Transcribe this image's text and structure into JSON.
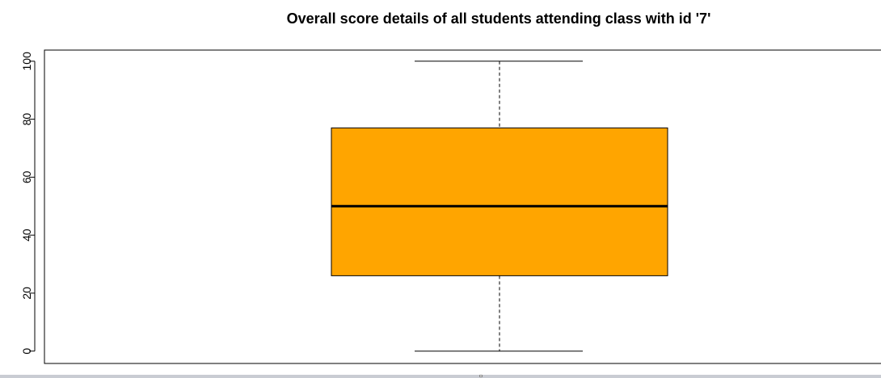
{
  "chart_data": {
    "type": "box",
    "title": "Overall score details of all students attending class with id '7'",
    "xlabel": "",
    "ylabel": "",
    "ylim": [
      0,
      100
    ],
    "yticks": [
      0,
      20,
      40,
      60,
      80,
      100
    ],
    "ytick_labels": [
      "0",
      "20",
      "40",
      "60",
      "80",
      "100"
    ],
    "grid": false,
    "legend": "none",
    "box": {
      "min": 0,
      "q1": 26,
      "median": 50,
      "q3": 77,
      "max": 100
    },
    "colors": {
      "box_fill": "#FFA500",
      "box_stroke": "#000000",
      "whisker": "#000000"
    }
  }
}
